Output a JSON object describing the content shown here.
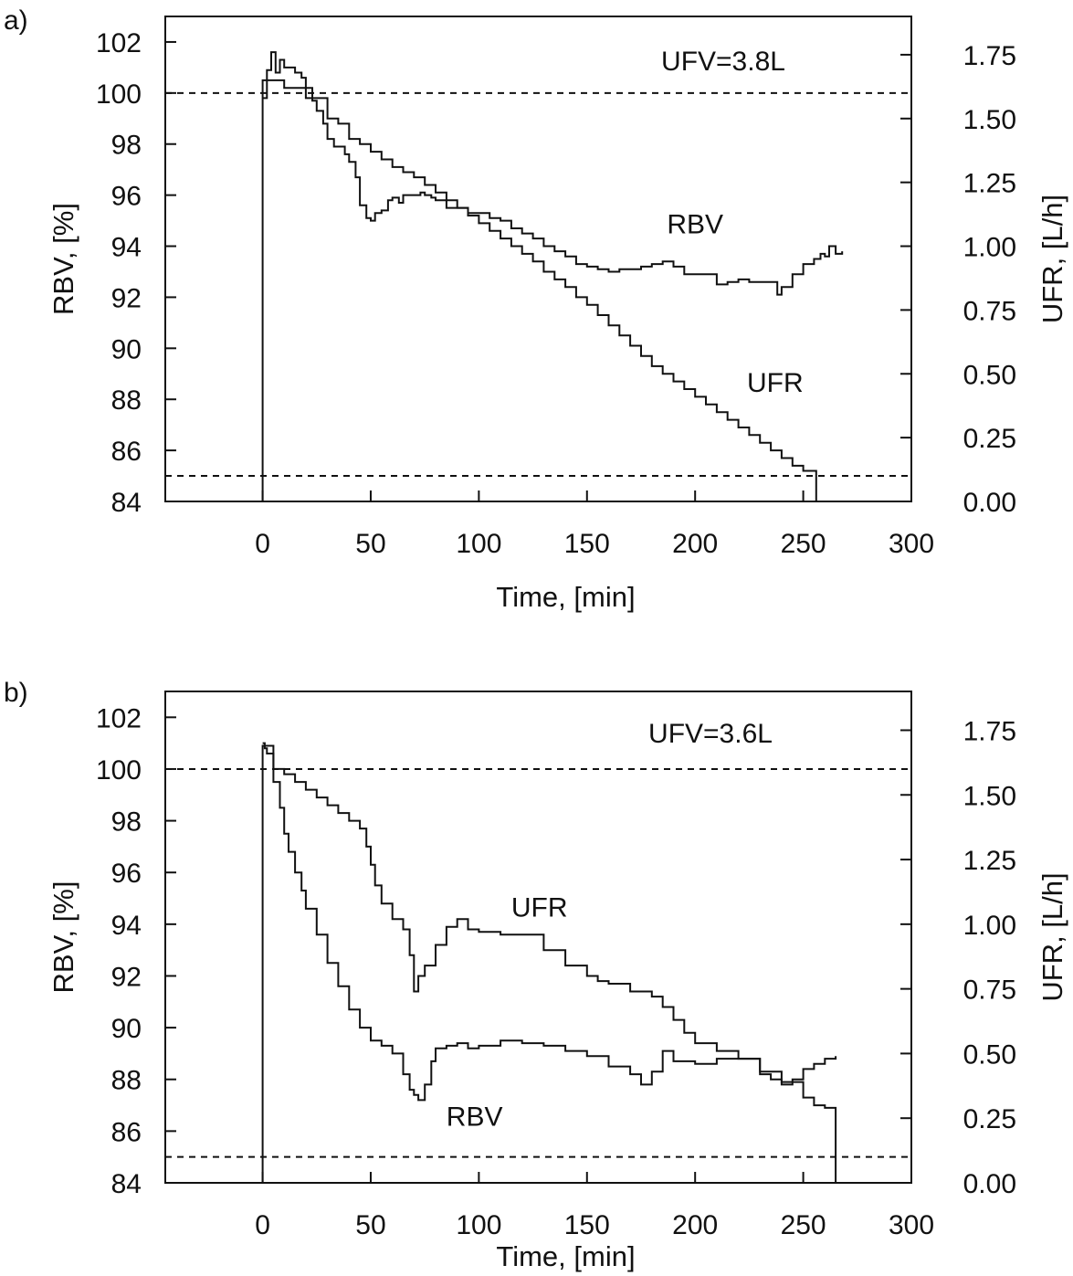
{
  "chart_data": [
    {
      "panel": "a)",
      "type": "line",
      "annotation": "UFV=3.8L",
      "xlabel": "Time, [min]",
      "ylabel": "RBV, [%]",
      "y2label": "UFR, [L/h]",
      "xlim": [
        -45,
        300
      ],
      "ylim": [
        84,
        103
      ],
      "y2lim": [
        0,
        1.9
      ],
      "xticks": [
        0,
        50,
        100,
        150,
        200,
        250,
        300
      ],
      "yticks": [
        84,
        86,
        88,
        90,
        92,
        94,
        96,
        98,
        100,
        102
      ],
      "y2ticks": [
        "0.00",
        "0.25",
        "0.50",
        "0.75",
        "1.00",
        "1.25",
        "1.50",
        "1.75"
      ],
      "ref_lines": {
        "y": [
          100
        ],
        "y2": [
          0.1
        ]
      },
      "grid": false,
      "series": [
        {
          "name": "RBV",
          "axis": "left",
          "x": [
            0,
            2,
            4,
            6,
            8,
            10,
            12,
            15,
            18,
            20,
            23,
            25,
            28,
            30,
            33,
            35,
            38,
            40,
            43,
            45,
            48,
            50,
            52,
            55,
            58,
            60,
            63,
            65,
            68,
            70,
            73,
            75,
            78,
            80,
            85,
            90,
            95,
            100,
            105,
            110,
            115,
            120,
            125,
            130,
            135,
            140,
            145,
            150,
            155,
            160,
            165,
            170,
            175,
            180,
            185,
            190,
            195,
            200,
            205,
            210,
            215,
            220,
            225,
            230,
            235,
            238,
            240,
            245,
            250,
            255,
            258,
            260,
            262,
            265,
            268
          ],
          "values": [
            99.8,
            100.9,
            101.6,
            100.8,
            101.3,
            101.0,
            101.0,
            100.8,
            100.6,
            100.2,
            99.7,
            99.3,
            98.8,
            98.2,
            97.9,
            97.9,
            97.6,
            97.3,
            96.7,
            95.6,
            95.1,
            95.0,
            95.3,
            95.4,
            95.8,
            95.9,
            95.7,
            96.0,
            96.0,
            96.0,
            96.1,
            96.0,
            95.9,
            95.8,
            95.5,
            95.5,
            95.3,
            95.3,
            95.1,
            95.0,
            94.7,
            94.5,
            94.3,
            94.0,
            93.8,
            93.6,
            93.3,
            93.2,
            93.1,
            93.0,
            93.1,
            93.1,
            93.2,
            93.3,
            93.4,
            93.2,
            92.9,
            92.9,
            92.9,
            92.5,
            92.6,
            92.7,
            92.6,
            92.6,
            92.6,
            92.1,
            92.4,
            92.9,
            93.3,
            93.5,
            93.7,
            93.6,
            94.0,
            93.7,
            93.8
          ]
        },
        {
          "name": "UFR",
          "axis": "right",
          "x": [
            0,
            0,
            5,
            10,
            20,
            30,
            35,
            40,
            45,
            50,
            55,
            60,
            65,
            70,
            75,
            80,
            85,
            90,
            95,
            100,
            105,
            110,
            115,
            120,
            125,
            130,
            135,
            140,
            145,
            150,
            155,
            160,
            165,
            170,
            175,
            180,
            185,
            190,
            195,
            200,
            205,
            210,
            215,
            220,
            225,
            230,
            235,
            240,
            245,
            250,
            255,
            256,
            256
          ],
          "values": [
            0.0,
            1.65,
            1.65,
            1.62,
            1.58,
            1.5,
            1.48,
            1.42,
            1.4,
            1.37,
            1.34,
            1.31,
            1.29,
            1.27,
            1.24,
            1.21,
            1.18,
            1.15,
            1.12,
            1.09,
            1.06,
            1.03,
            1.0,
            0.97,
            0.94,
            0.9,
            0.87,
            0.84,
            0.8,
            0.77,
            0.73,
            0.69,
            0.65,
            0.61,
            0.57,
            0.53,
            0.5,
            0.47,
            0.44,
            0.41,
            0.38,
            0.35,
            0.32,
            0.29,
            0.26,
            0.23,
            0.2,
            0.17,
            0.14,
            0.12,
            0.12,
            0.12,
            0.0
          ]
        }
      ],
      "series_labels": [
        {
          "text": "RBV",
          "x": 200,
          "y": 94.5
        },
        {
          "text": "UFR",
          "x": 237,
          "y": 88.3
        }
      ]
    },
    {
      "panel": "b)",
      "type": "line",
      "annotation": "UFV=3.6L",
      "xlabel": "Time, [min]",
      "ylabel": "RBV, [%]",
      "y2label": "UFR, [L/h]",
      "xlim": [
        -45,
        300
      ],
      "ylim": [
        84,
        103
      ],
      "y2lim": [
        0,
        1.9
      ],
      "xticks": [
        0,
        50,
        100,
        150,
        200,
        250,
        300
      ],
      "yticks": [
        84,
        86,
        88,
        90,
        92,
        94,
        96,
        98,
        100,
        102
      ],
      "y2ticks": [
        "0.00",
        "0.25",
        "0.50",
        "0.75",
        "1.00",
        "1.25",
        "1.50",
        "1.75"
      ],
      "ref_lines": {
        "y": [
          100
        ],
        "y2": [
          0.1
        ]
      },
      "grid": false,
      "series": [
        {
          "name": "RBV",
          "axis": "left",
          "x": [
            0,
            1,
            2,
            5,
            8,
            10,
            12,
            15,
            18,
            20,
            25,
            30,
            35,
            40,
            45,
            50,
            55,
            60,
            65,
            68,
            70,
            72,
            75,
            78,
            80,
            85,
            90,
            95,
            100,
            110,
            120,
            130,
            140,
            150,
            160,
            170,
            175,
            180,
            185,
            190,
            200,
            210,
            220,
            230,
            235,
            240,
            245,
            250,
            255,
            260,
            265
          ],
          "values": [
            101.0,
            100.8,
            100.6,
            99.5,
            98.5,
            97.5,
            96.8,
            96.0,
            95.3,
            94.6,
            93.6,
            92.5,
            91.6,
            90.7,
            90.0,
            89.5,
            89.3,
            89.0,
            88.2,
            87.6,
            87.4,
            87.2,
            87.8,
            88.7,
            89.2,
            89.3,
            89.4,
            89.2,
            89.3,
            89.5,
            89.4,
            89.3,
            89.1,
            88.9,
            88.5,
            88.2,
            87.8,
            88.3,
            89.1,
            88.7,
            88.6,
            88.8,
            88.8,
            88.2,
            88.0,
            87.8,
            88.0,
            88.4,
            88.6,
            88.8,
            88.9
          ]
        },
        {
          "name": "UFR",
          "axis": "right",
          "x": [
            0,
            0,
            3,
            5,
            10,
            15,
            20,
            25,
            30,
            35,
            40,
            45,
            48,
            50,
            52,
            55,
            60,
            65,
            68,
            70,
            72,
            75,
            80,
            85,
            90,
            95,
            100,
            110,
            120,
            130,
            140,
            150,
            155,
            160,
            170,
            180,
            185,
            190,
            195,
            200,
            210,
            220,
            230,
            240,
            250,
            255,
            260,
            265,
            265
          ],
          "values": [
            0.0,
            1.69,
            1.69,
            1.6,
            1.58,
            1.55,
            1.52,
            1.49,
            1.46,
            1.43,
            1.4,
            1.37,
            1.3,
            1.23,
            1.15,
            1.08,
            1.02,
            0.98,
            0.88,
            0.74,
            0.8,
            0.84,
            0.92,
            0.99,
            1.02,
            0.98,
            0.97,
            0.96,
            0.96,
            0.9,
            0.84,
            0.8,
            0.78,
            0.77,
            0.74,
            0.72,
            0.68,
            0.63,
            0.58,
            0.54,
            0.51,
            0.48,
            0.43,
            0.39,
            0.33,
            0.3,
            0.29,
            0.29,
            0.0
          ]
        }
      ],
      "series_labels": [
        {
          "text": "UFR",
          "x": 128,
          "y": 94.3
        },
        {
          "text": "RBV",
          "x": 98,
          "y": 86.2
        }
      ]
    }
  ]
}
